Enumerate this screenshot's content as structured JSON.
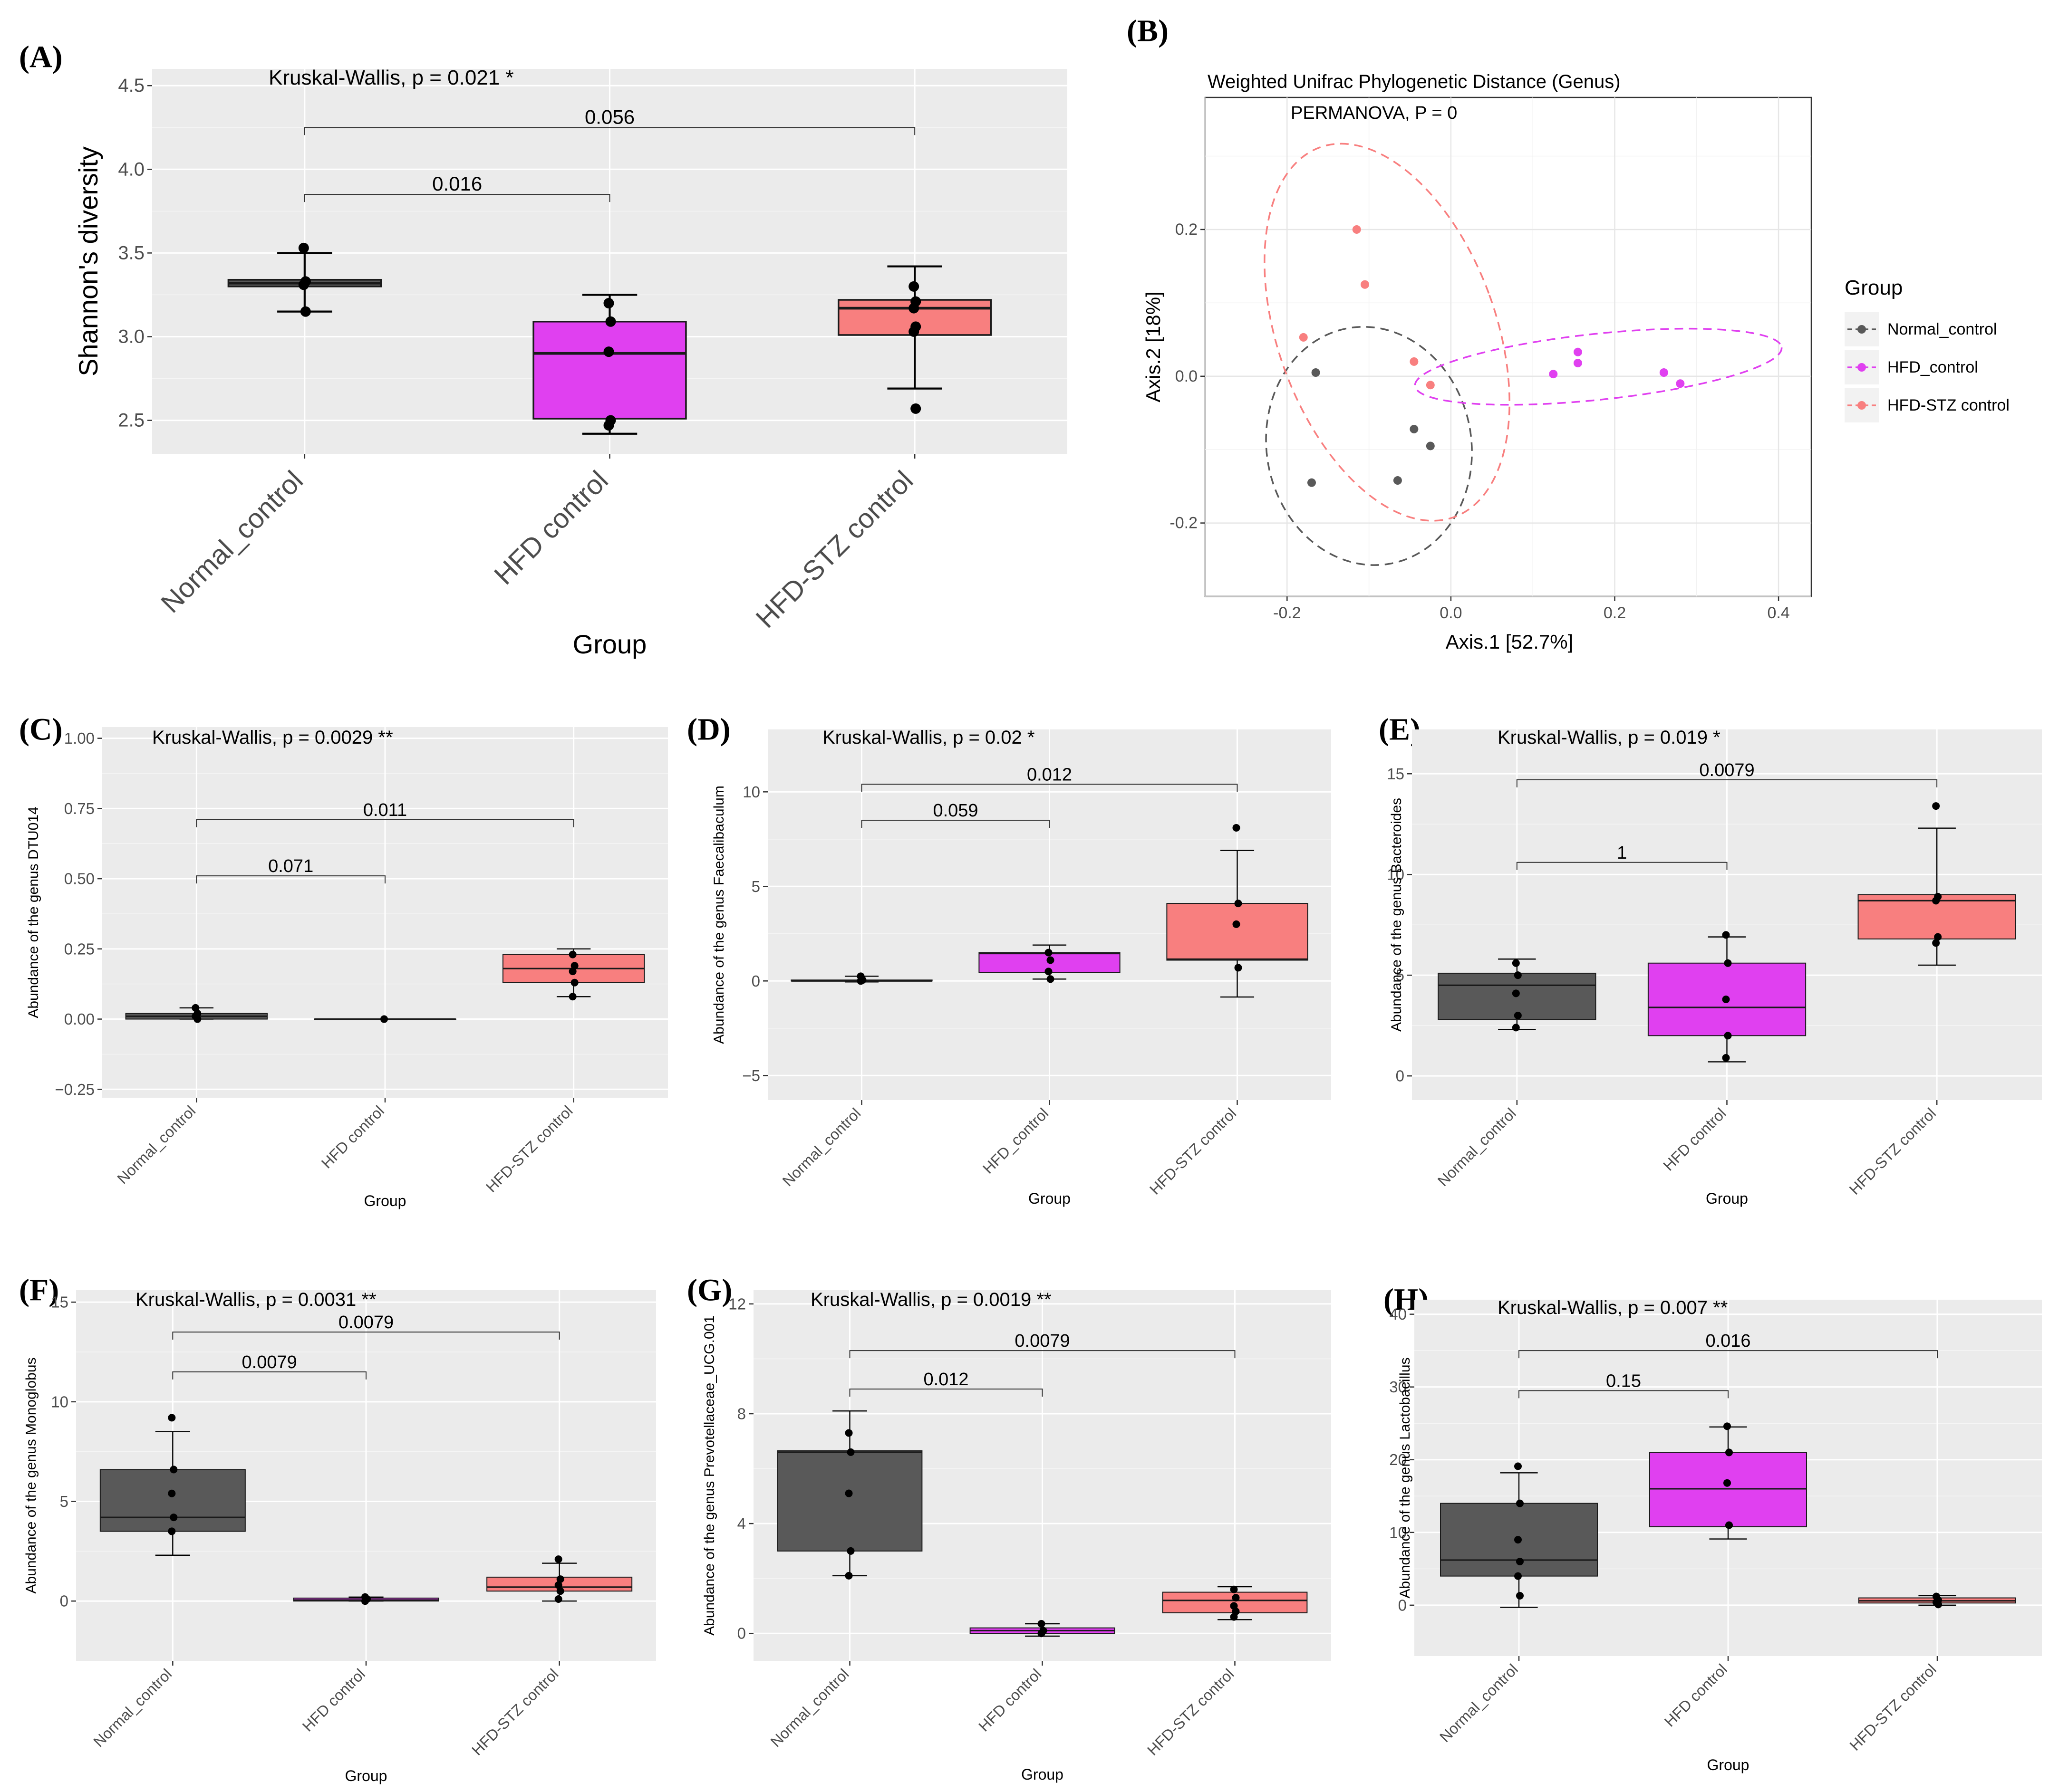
{
  "colors": {
    "Normal": "#595959",
    "HFD": "#e040f0",
    "STZ": "#f87f7f",
    "background": "#ebebeb"
  },
  "chart_data": [
    {
      "id": "A",
      "panel_label": "(A)",
      "type": "box",
      "title": "Kruskal-Wallis, p =  0.021 *",
      "xlabel": "Group",
      "ylabel": "Shannon's diversity",
      "ylim": [
        2.3,
        4.6
      ],
      "yticks": [
        2.5,
        3.0,
        3.5,
        4.0,
        4.5
      ],
      "ytick_labels": [
        "2.5",
        "3.0",
        "3.5",
        "4.0",
        "4.5"
      ],
      "categories": [
        "Normal_control",
        "HFD control",
        "HFD-STZ control"
      ],
      "groups": [
        {
          "name": "Normal_control",
          "color": "Normal",
          "q1": 3.3,
          "median": 3.32,
          "q3": 3.34,
          "wlo": 3.15,
          "whi": 3.5,
          "points": [
            3.53,
            3.33,
            3.31,
            3.15
          ]
        },
        {
          "name": "HFD control",
          "color": "HFD",
          "q1": 2.51,
          "median": 2.9,
          "q3": 3.09,
          "wlo": 2.42,
          "whi": 3.25,
          "points": [
            3.2,
            3.09,
            2.91,
            2.5,
            2.47
          ]
        },
        {
          "name": "HFD-STZ control",
          "color": "STZ",
          "q1": 3.01,
          "median": 3.17,
          "q3": 3.22,
          "wlo": 2.69,
          "whi": 3.42,
          "points": [
            3.3,
            3.21,
            3.17,
            3.06,
            3.03,
            2.57
          ]
        }
      ],
      "brackets": [
        {
          "from": 0,
          "to": 1,
          "y": 3.85,
          "label": "0.016"
        },
        {
          "from": 0,
          "to": 2,
          "y": 4.25,
          "label": "0.056"
        }
      ]
    },
    {
      "id": "B",
      "panel_label": "(B)",
      "type": "scatter",
      "title": "Weighted Unifrac Phylogenetic Distance (Genus)",
      "annotation": "PERMANOVA, P = 0",
      "xlabel": "Axis.1 [52.7%]",
      "ylabel": "Axis.2 [18%]",
      "xlim": [
        -0.3,
        0.44
      ],
      "ylim": [
        -0.3,
        0.38
      ],
      "xticks": [
        -0.2,
        0.0,
        0.2,
        0.4
      ],
      "xtick_labels": [
        "-0.2",
        "0.0",
        "0.2",
        "0.4"
      ],
      "yticks": [
        -0.2,
        0.0,
        0.2
      ],
      "ytick_labels": [
        "-0.2",
        "0.0",
        "0.2"
      ],
      "legend_title": "Group",
      "series": [
        {
          "name": "Normal_control",
          "color": "Normal",
          "x": [
            -0.165,
            -0.17,
            -0.065,
            -0.045,
            -0.025
          ],
          "y": [
            0.005,
            -0.145,
            -0.142,
            -0.072,
            -0.095
          ],
          "ellipse": {
            "cx": -0.1,
            "cy": -0.095,
            "rx": 0.125,
            "ry": 0.163,
            "angle": -10
          }
        },
        {
          "name": "HFD_control",
          "color": "HFD",
          "x": [
            0.125,
            0.155,
            0.155,
            0.26,
            0.28
          ],
          "y": [
            0.003,
            0.018,
            0.033,
            0.005,
            -0.01
          ],
          "ellipse": {
            "cx": 0.18,
            "cy": 0.013,
            "rx": 0.225,
            "ry": 0.045,
            "angle": -6
          }
        },
        {
          "name": "HFD-STZ control",
          "color": "STZ",
          "x": [
            -0.18,
            -0.115,
            -0.105,
            -0.045,
            -0.025
          ],
          "y": [
            0.053,
            0.2,
            0.125,
            0.02,
            -0.012
          ],
          "ellipse": {
            "cx": -0.078,
            "cy": 0.06,
            "rx": 0.133,
            "ry": 0.268,
            "angle": -20
          }
        }
      ]
    },
    {
      "id": "C",
      "panel_label": "(C)",
      "type": "box",
      "title": "Kruskal-Wallis, p =  0.0029 **",
      "xlabel": "Group",
      "ylabel": "Abundance of the genus DTU014",
      "ylim": [
        -0.28,
        1.04
      ],
      "yticks": [
        -0.25,
        0.0,
        0.25,
        0.5,
        0.75,
        1.0
      ],
      "ytick_labels": [
        "−0.25",
        "0.00",
        "0.25",
        "0.50",
        "0.75",
        "1.00"
      ],
      "categories": [
        "Normal_control",
        "HFD control",
        "HFD-STZ control"
      ],
      "groups": [
        {
          "name": "Normal_control",
          "color": "Normal",
          "q1": 0.0,
          "median": 0.01,
          "q3": 0.02,
          "wlo": 0.0,
          "whi": 0.04,
          "points": [
            0.04,
            0.02,
            0.01,
            0.0
          ]
        },
        {
          "name": "HFD control",
          "color": "HFD",
          "q1": 0.0,
          "median": 0.0,
          "q3": 0.0,
          "wlo": 0.0,
          "whi": 0.0,
          "points": [
            0.0
          ]
        },
        {
          "name": "HFD-STZ control",
          "color": "STZ",
          "q1": 0.13,
          "median": 0.18,
          "q3": 0.23,
          "wlo": 0.08,
          "whi": 0.25,
          "points": [
            0.23,
            0.19,
            0.17,
            0.13,
            0.08
          ]
        }
      ],
      "brackets": [
        {
          "from": 0,
          "to": 1,
          "y": 0.51,
          "label": "0.071"
        },
        {
          "from": 0,
          "to": 2,
          "y": 0.71,
          "label": "0.011"
        }
      ]
    },
    {
      "id": "D",
      "panel_label": "(D)",
      "type": "box",
      "title": "Kruskal-Wallis, p =  0.02 *",
      "xlabel": "Group",
      "ylabel": "Abundance of the genus Faecalibaculum",
      "ylim": [
        -6.3,
        13.3
      ],
      "yticks": [
        -5,
        0,
        5,
        10
      ],
      "ytick_labels": [
        "−5",
        "0",
        "5",
        "10"
      ],
      "categories": [
        "Normal_control",
        "HFD_control",
        "HFD-STZ control"
      ],
      "groups": [
        {
          "name": "Normal_control",
          "color": "Normal",
          "q1": 0.0,
          "median": 0.0,
          "q3": 0.05,
          "wlo": -0.05,
          "whi": 0.25,
          "points": [
            0.25,
            0.05,
            0.0
          ]
        },
        {
          "name": "HFD_control",
          "color": "HFD",
          "q1": 0.45,
          "median": 1.45,
          "q3": 1.5,
          "wlo": 0.1,
          "whi": 1.9,
          "points": [
            1.5,
            1.1,
            0.5,
            0.1
          ]
        },
        {
          "name": "HFD-STZ control",
          "color": "STZ",
          "q1": 1.1,
          "median": 1.15,
          "q3": 4.1,
          "wlo": -0.85,
          "whi": 6.9,
          "points": [
            8.1,
            4.1,
            3.0,
            0.7
          ]
        }
      ],
      "brackets": [
        {
          "from": 0,
          "to": 1,
          "y": 8.5,
          "label": "0.059"
        },
        {
          "from": 0,
          "to": 2,
          "y": 10.4,
          "label": "0.012"
        }
      ]
    },
    {
      "id": "E",
      "panel_label": "(E)",
      "type": "box",
      "title": "Kruskal-Wallis, p =  0.019 *",
      "xlabel": "Group",
      "ylabel": "Abundance of the genus Bacteroides",
      "ylim": [
        -1.2,
        17.2
      ],
      "yticks": [
        0,
        5,
        10,
        15
      ],
      "ytick_labels": [
        "0",
        "5",
        "10",
        "15"
      ],
      "categories": [
        "Normal_control",
        "HFD control",
        "HFD-STZ control"
      ],
      "groups": [
        {
          "name": "Normal_control",
          "color": "Normal",
          "q1": 2.8,
          "median": 4.5,
          "q3": 5.1,
          "wlo": 2.3,
          "whi": 5.8,
          "points": [
            5.6,
            5.0,
            4.1,
            3.0,
            2.4
          ]
        },
        {
          "name": "HFD control",
          "color": "HFD",
          "q1": 2.0,
          "median": 3.4,
          "q3": 5.6,
          "wlo": 0.7,
          "whi": 6.9,
          "points": [
            7.0,
            5.6,
            3.8,
            2.0,
            0.9
          ]
        },
        {
          "name": "HFD-STZ control",
          "color": "STZ",
          "q1": 6.8,
          "median": 8.7,
          "q3": 9.0,
          "wlo": 5.5,
          "whi": 12.3,
          "points": [
            13.4,
            8.9,
            8.7,
            6.9,
            6.6
          ]
        }
      ],
      "brackets": [
        {
          "from": 0,
          "to": 1,
          "y": 10.6,
          "label": "1"
        },
        {
          "from": 0,
          "to": 2,
          "y": 14.7,
          "label": "0.0079"
        }
      ]
    },
    {
      "id": "F",
      "panel_label": "(F)",
      "type": "box",
      "title": "Kruskal-Wallis, p =  0.0031 **",
      "xlabel": "Group",
      "ylabel": "Abundance of the genus Monoglobus",
      "ylim": [
        -3.0,
        15.6
      ],
      "yticks": [
        0,
        5,
        10,
        15
      ],
      "ytick_labels": [
        "0",
        "5",
        "10",
        "15"
      ],
      "categories": [
        "Normal_control",
        "HFD control",
        "HFD-STZ control"
      ],
      "groups": [
        {
          "name": "Normal_control",
          "color": "Normal",
          "q1": 3.5,
          "median": 4.2,
          "q3": 6.6,
          "wlo": 2.3,
          "whi": 8.5,
          "points": [
            9.2,
            6.6,
            5.4,
            4.2,
            3.5
          ]
        },
        {
          "name": "HFD control",
          "color": "HFD",
          "q1": 0.0,
          "median": 0.05,
          "q3": 0.15,
          "wlo": 0.0,
          "whi": 0.2,
          "points": [
            0.2,
            0.1,
            0.0
          ]
        },
        {
          "name": "HFD-STZ control",
          "color": "STZ",
          "q1": 0.5,
          "median": 0.7,
          "q3": 1.2,
          "wlo": 0.0,
          "whi": 1.9,
          "points": [
            2.1,
            1.1,
            0.8,
            0.5,
            0.1
          ]
        }
      ],
      "brackets": [
        {
          "from": 0,
          "to": 1,
          "y": 11.5,
          "label": "0.0079"
        },
        {
          "from": 0,
          "to": 2,
          "y": 13.5,
          "label": "0.0079"
        }
      ]
    },
    {
      "id": "G",
      "panel_label": "(G)",
      "type": "box",
      "title": "Kruskal-Wallis, p =  0.0019 **",
      "xlabel": "Group",
      "ylabel": "Abundance of the genus Prevotellaceae_UCG.001",
      "ylim": [
        -1.0,
        12.5
      ],
      "yticks": [
        0,
        4,
        8,
        12
      ],
      "ytick_labels": [
        "0",
        "4",
        "8",
        "12"
      ],
      "categories": [
        "Normal_control",
        "HFD control",
        "HFD-STZ control"
      ],
      "groups": [
        {
          "name": "Normal_control",
          "color": "Normal",
          "q1": 3.0,
          "median": 6.6,
          "q3": 6.65,
          "wlo": 2.1,
          "whi": 8.1,
          "points": [
            7.3,
            6.6,
            5.1,
            3.0,
            2.1
          ]
        },
        {
          "name": "HFD control",
          "color": "HFD",
          "q1": 0.0,
          "median": 0.1,
          "q3": 0.2,
          "wlo": -0.1,
          "whi": 0.35,
          "points": [
            0.35,
            0.1,
            0.0
          ]
        },
        {
          "name": "HFD-STZ control",
          "color": "STZ",
          "q1": 0.75,
          "median": 1.2,
          "q3": 1.5,
          "wlo": 0.5,
          "whi": 1.7,
          "points": [
            1.6,
            1.3,
            1.0,
            0.8,
            0.6
          ]
        }
      ],
      "brackets": [
        {
          "from": 0,
          "to": 1,
          "y": 8.9,
          "label": "0.012"
        },
        {
          "from": 0,
          "to": 2,
          "y": 10.3,
          "label": "0.0079"
        }
      ]
    },
    {
      "id": "H",
      "panel_label": "(H)",
      "type": "box",
      "title": "Kruskal-Wallis, p =  0.007 **",
      "xlabel": "Group",
      "ylabel": "Abundance of the genus Lactobacillus",
      "ylim": [
        -7.0,
        42.0
      ],
      "yticks": [
        0,
        10,
        20,
        30,
        40
      ],
      "ytick_labels": [
        "0",
        "10",
        "20",
        "30",
        "40"
      ],
      "categories": [
        "Normal_control",
        "HFD control",
        "HFD-STZ control"
      ],
      "groups": [
        {
          "name": "Normal_control",
          "color": "Normal",
          "q1": 4.0,
          "median": 6.2,
          "q3": 14.0,
          "wlo": -0.3,
          "whi": 18.2,
          "points": [
            19.1,
            14.0,
            9.0,
            6.0,
            4.0,
            1.3
          ]
        },
        {
          "name": "HFD control",
          "color": "HFD",
          "q1": 10.8,
          "median": 16.0,
          "q3": 21.0,
          "wlo": 9.1,
          "whi": 24.5,
          "points": [
            24.6,
            21.0,
            16.8,
            11.0
          ]
        },
        {
          "name": "HFD-STZ control",
          "color": "STZ",
          "q1": 0.3,
          "median": 0.6,
          "q3": 1.0,
          "wlo": 0.0,
          "whi": 1.3,
          "points": [
            1.2,
            0.7,
            0.4,
            0.1
          ]
        }
      ],
      "brackets": [
        {
          "from": 0,
          "to": 1,
          "y": 29.5,
          "label": "0.15"
        },
        {
          "from": 0,
          "to": 2,
          "y": 35.0,
          "label": "0.016"
        }
      ]
    }
  ]
}
